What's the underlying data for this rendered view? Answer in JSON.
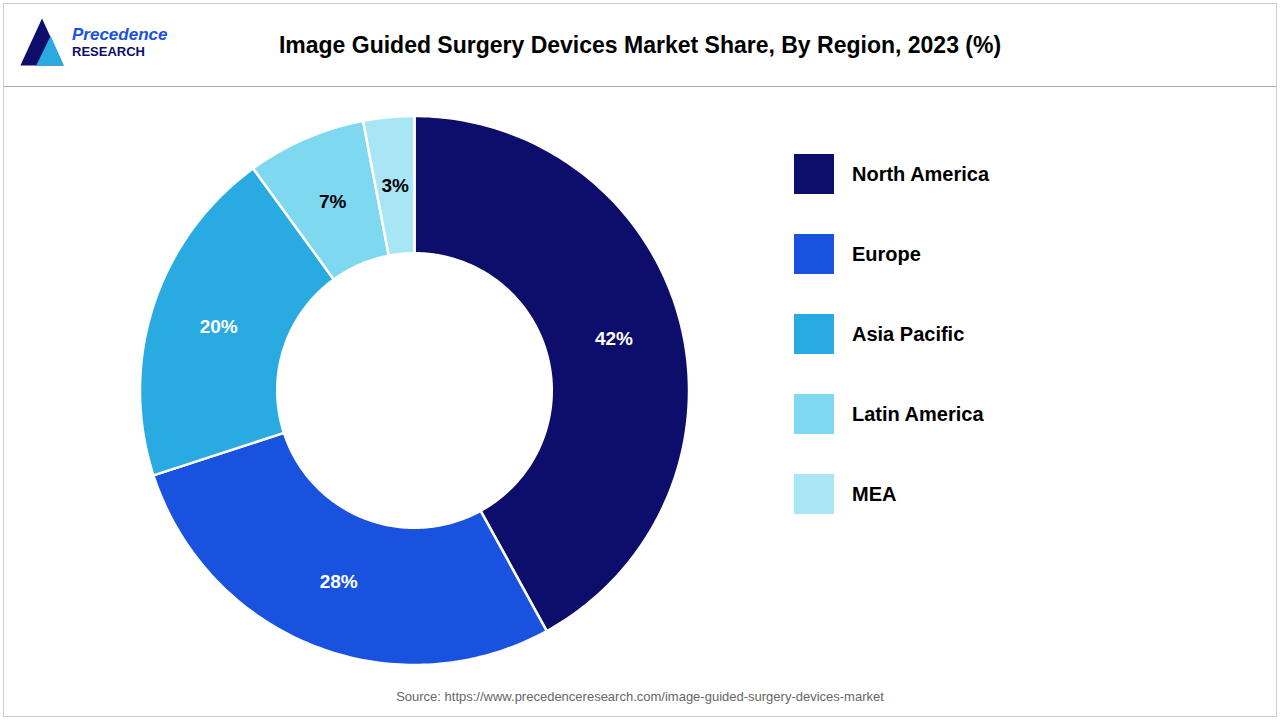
{
  "chart_data": {
    "type": "donut",
    "title": "Image Guided Surgery Devices Market Share, By Region, 2023 (%)",
    "categories": [
      "North America",
      "Europe",
      "Asia Pacific",
      "Latin America",
      "MEA"
    ],
    "values": [
      42,
      28,
      20,
      7,
      3
    ],
    "value_labels": [
      "42%",
      "28%",
      "20%",
      "7%",
      "3%"
    ],
    "colors": [
      "#0d0d6b",
      "#1a52e0",
      "#29abe2",
      "#7dd8f0",
      "#a8e6f5"
    ],
    "data_labels": true,
    "legend": "right",
    "annotations": [
      "Precedence",
      "RESEARCH"
    ],
    "caption": "Source: https://www.precedenceresearch.com/image-guided-surgery-devices-market"
  }
}
